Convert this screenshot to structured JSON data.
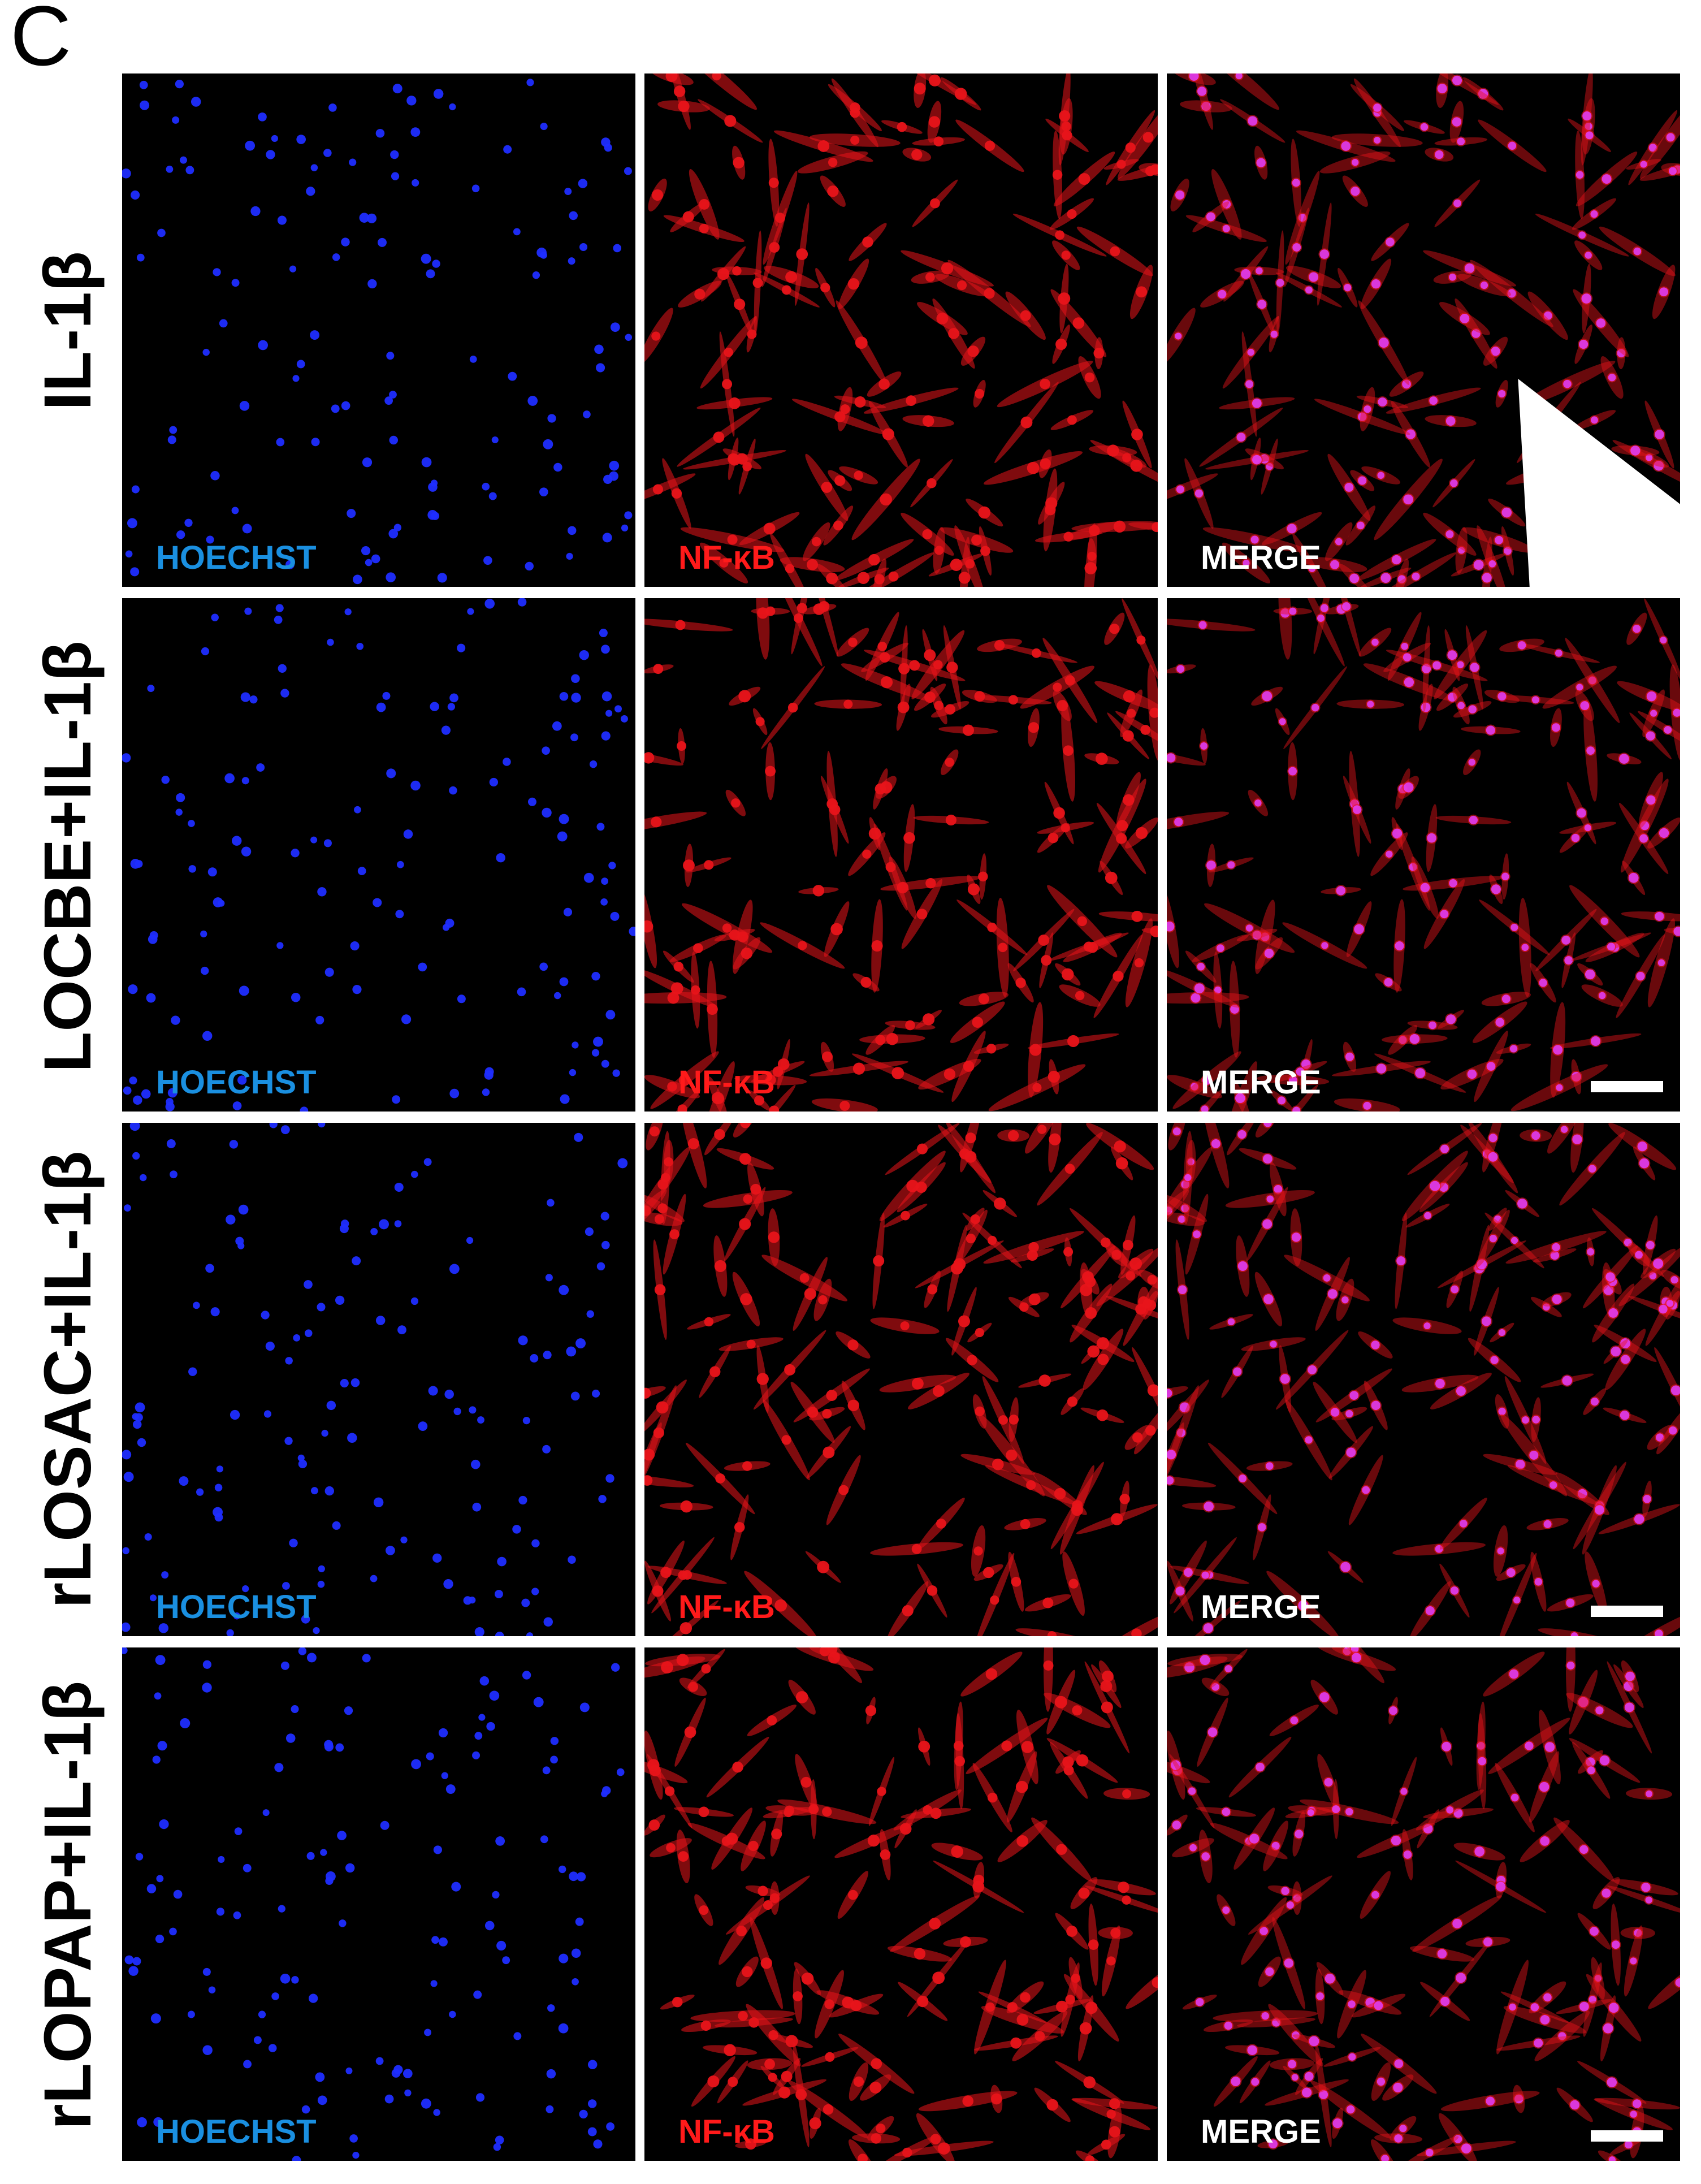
{
  "figure": {
    "panel_letter": "C",
    "colors": {
      "hoechst_label": "#1a8fe0",
      "nfkb_label": "#ff1a1a",
      "merge_label": "#ffffff",
      "hoechst_nuclei": "#1f2dff",
      "nfkb_cells": "#e8141a",
      "merge_nuclei": "#e040ff"
    },
    "channels": [
      {
        "name": "hoechst",
        "label": "HOECHST"
      },
      {
        "name": "nfkb",
        "label": "NF-κB"
      },
      {
        "name": "merge",
        "label": "MERGE"
      }
    ],
    "rows": [
      {
        "label": "IL-1β",
        "has_arrow": true
      },
      {
        "label": "LOCBE+IL-1β",
        "has_arrow": false
      },
      {
        "label": "rLOSAC+IL-1β",
        "has_arrow": false
      },
      {
        "label": "rLOPAP+IL-1β",
        "has_arrow": false
      }
    ]
  }
}
